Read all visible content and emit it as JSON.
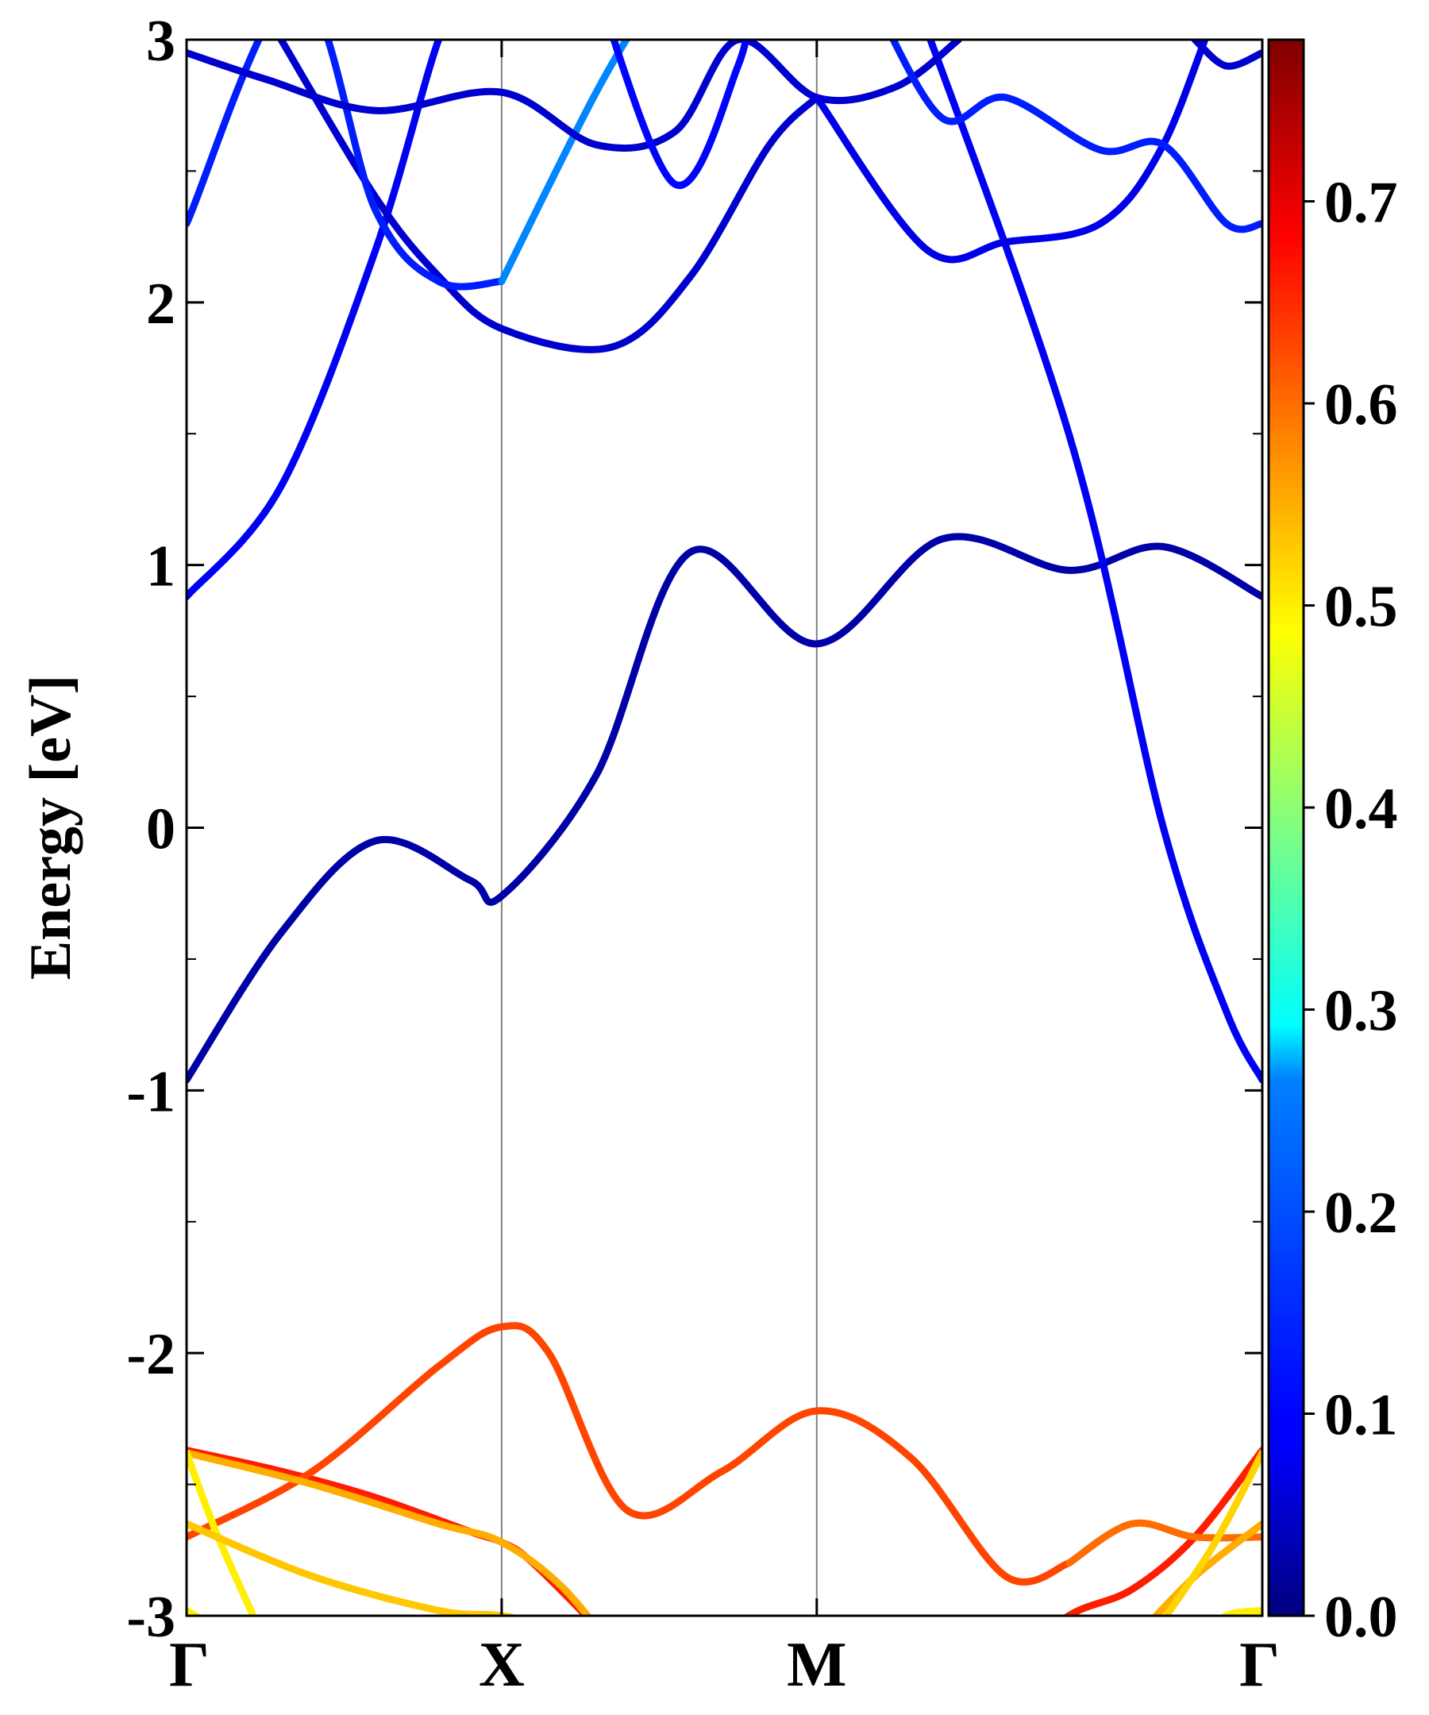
{
  "chart_data": {
    "type": "line",
    "title": "",
    "xlabel": "",
    "ylabel": "Energy [eV]",
    "ylim": [
      -3,
      3
    ],
    "y_ticks": [
      -3,
      -2,
      -1,
      0,
      1,
      2,
      3
    ],
    "y_tick_labels": [
      "-3",
      "-2",
      "-1",
      "0",
      "1",
      "2",
      "3"
    ],
    "x_ticks": [
      0,
      1,
      2,
      3.414
    ],
    "x_tick_labels": [
      "Γ",
      "X",
      "M",
      "Γ"
    ],
    "xlim": [
      0,
      3.414
    ],
    "high_symmetry_lines": [
      1,
      2
    ],
    "colorbar": {
      "colormap": "jet",
      "range": [
        0.0,
        0.78
      ],
      "ticks": [
        0.0,
        0.1,
        0.2,
        0.3,
        0.4,
        0.5,
        0.6,
        0.7
      ],
      "tick_labels": [
        "0.0",
        "0.1",
        "0.2",
        "0.3",
        "0.4",
        "0.5",
        "0.6",
        "0.7"
      ]
    },
    "series": [
      {
        "weight": 0.03,
        "x": [
          0,
          0.3,
          0.6,
          0.9,
          1.0,
          1.3,
          1.6,
          2.0,
          2.4,
          2.8,
          3.1,
          3.414
        ],
        "y": [
          -0.96,
          -0.4,
          -0.05,
          -0.2,
          -0.26,
          0.2,
          1.05,
          0.7,
          1.1,
          0.98,
          1.07,
          0.88
        ]
      },
      {
        "weight": 0.09,
        "x": [
          0,
          0.3,
          0.6,
          0.8,
          0.9
        ],
        "y": [
          0.88,
          1.3,
          2.2,
          3.0,
          3.2
        ]
      },
      {
        "weight": 0.09,
        "x": [
          2.3,
          2.8,
          3.1,
          3.3,
          3.414
        ],
        "y": [
          3.2,
          1.5,
          0.0,
          -0.7,
          -0.96
        ]
      },
      {
        "weight": 0.06,
        "x": [
          0.3,
          0.6,
          0.8,
          1.0,
          1.35,
          1.6,
          1.85,
          2.0
        ],
        "y": [
          3.0,
          2.4,
          2.1,
          1.9,
          1.83,
          2.1,
          2.6,
          2.78
        ]
      },
      {
        "weight": 0.12,
        "x": [
          0,
          0.35,
          0.6,
          0.8,
          1.0
        ],
        "y": [
          2.3,
          3.2,
          2.35,
          2.08,
          2.08
        ]
      },
      {
        "weight": 0.2,
        "x": [
          1.0,
          1.3,
          1.5
        ],
        "y": [
          2.08,
          2.8,
          3.2
        ]
      },
      {
        "weight": 0.06,
        "x": [
          0,
          0.25,
          0.6,
          1.0,
          1.3,
          1.55,
          1.75,
          2.0,
          2.25,
          2.45
        ],
        "y": [
          2.95,
          2.85,
          2.73,
          2.8,
          2.6,
          2.65,
          3.0,
          2.78,
          2.82,
          3.0
        ]
      },
      {
        "weight": 0.08,
        "x": [
          2.0,
          2.35,
          2.6,
          2.9,
          3.1,
          3.3,
          3.414
        ],
        "y": [
          2.78,
          2.2,
          2.23,
          2.3,
          2.6,
          3.2,
          3.3
        ]
      },
      {
        "weight": 0.12,
        "x": [
          2.2,
          2.4,
          2.6,
          2.9,
          3.1,
          3.3,
          3.414
        ],
        "y": [
          3.1,
          2.7,
          2.78,
          2.58,
          2.6,
          2.3,
          2.3
        ]
      },
      {
        "weight": 0.06,
        "x": [
          3.2,
          3.3,
          3.414
        ],
        "y": [
          3.0,
          2.9,
          2.95
        ]
      },
      {
        "weight": 0.1,
        "x": [
          1.3,
          1.55,
          1.75,
          1.8
        ],
        "y": [
          3.2,
          2.45,
          2.9,
          3.2
        ]
      },
      {
        "weight": 0.66,
        "x": [
          0,
          0.3,
          0.6,
          0.9,
          1.0,
          1.1,
          1.35,
          1.6,
          2.0,
          2.3,
          2.6,
          2.8,
          3.0,
          3.2,
          3.414
        ],
        "y": [
          -2.37,
          -2.45,
          -2.55,
          -2.68,
          -2.72,
          -2.8,
          -3.1,
          -3.4,
          -3.6,
          -3.4,
          -3.2,
          -3.0,
          -2.9,
          -2.7,
          -2.37
        ]
      },
      {
        "weight": 0.63,
        "x": [
          0,
          0.4,
          0.8,
          1.0,
          1.15,
          1.4,
          1.7,
          2.0,
          2.3,
          2.6,
          2.8
        ],
        "y": [
          -2.7,
          -2.45,
          -2.05,
          -1.9,
          -2.0,
          -2.6,
          -2.45,
          -2.22,
          -2.4,
          -2.85,
          -2.8
        ]
      },
      {
        "weight": 0.6,
        "x": [
          2.8,
          3.0,
          3.2,
          3.414
        ],
        "y": [
          -2.8,
          -2.65,
          -2.7,
          -2.7
        ]
      },
      {
        "weight": 0.55,
        "x": [
          0,
          0.4,
          0.8,
          1.0,
          1.2,
          1.4
        ],
        "y": [
          -2.38,
          -2.5,
          -2.65,
          -2.72,
          -2.9,
          -3.2
        ]
      },
      {
        "weight": 0.5,
        "x": [
          0,
          0.1,
          0.25
        ],
        "y": [
          -2.38,
          -2.7,
          -3.1
        ]
      },
      {
        "weight": 0.53,
        "x": [
          0,
          0.4,
          0.8,
          1.0,
          1.2
        ],
        "y": [
          -2.65,
          -2.85,
          -2.98,
          -3.0,
          -3.05
        ]
      },
      {
        "weight": 0.55,
        "x": [
          3.0,
          3.2,
          3.414
        ],
        "y": [
          -3.1,
          -2.85,
          -2.65
        ]
      },
      {
        "weight": 0.52,
        "x": [
          3.05,
          3.25,
          3.414
        ],
        "y": [
          -3.1,
          -2.75,
          -2.38
        ]
      },
      {
        "weight": 0.5,
        "x": [
          3.2,
          3.3,
          3.414
        ],
        "y": [
          -3.1,
          -3.0,
          -2.98
        ]
      },
      {
        "weight": 0.5,
        "x": [
          0,
          0.1
        ],
        "y": [
          -2.98,
          -3.05
        ]
      }
    ]
  }
}
